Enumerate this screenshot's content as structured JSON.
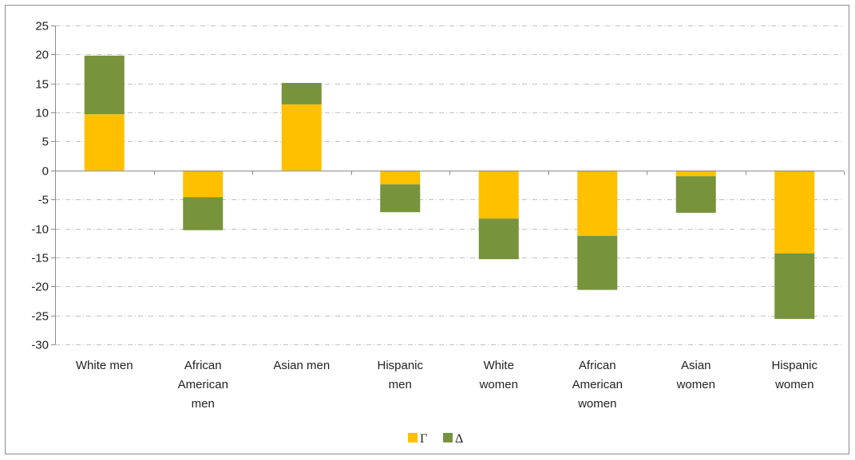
{
  "chart_data": {
    "type": "bar",
    "stacked": true,
    "categories": [
      [
        "White men"
      ],
      [
        "African",
        "American",
        "men"
      ],
      [
        "Asian men"
      ],
      [
        "Hispanic",
        "men"
      ],
      [
        "White",
        "women"
      ],
      [
        "African",
        "American",
        "women"
      ],
      [
        "Asian",
        "women"
      ],
      [
        "Hispanic",
        "women"
      ]
    ],
    "series": [
      {
        "name": "Γ",
        "color": "#FFC000",
        "values": [
          9.7,
          -4.6,
          11.4,
          -2.4,
          -8.3,
          -11.3,
          -1.0,
          -14.3
        ]
      },
      {
        "name": "Δ",
        "color": "#77933C",
        "values": [
          10.1,
          -5.7,
          3.7,
          -4.8,
          -7.0,
          -9.3,
          -6.3,
          -11.3
        ]
      }
    ],
    "ylim": [
      -30,
      25
    ],
    "yticks": [
      25,
      20,
      15,
      10,
      5,
      0,
      -5,
      -10,
      -15,
      -20,
      -25,
      -30
    ],
    "grid": true,
    "legend": "bottom-center",
    "title": "",
    "xlabel": "",
    "ylabel": ""
  }
}
